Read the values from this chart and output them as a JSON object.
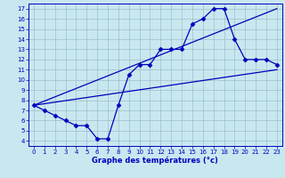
{
  "xlabel": "Graphe des températures (°c)",
  "xlim": [
    -0.5,
    23.5
  ],
  "ylim": [
    3.5,
    17.5
  ],
  "yticks": [
    4,
    5,
    6,
    7,
    8,
    9,
    10,
    11,
    12,
    13,
    14,
    15,
    16,
    17
  ],
  "xticks": [
    0,
    1,
    2,
    3,
    4,
    5,
    6,
    7,
    8,
    9,
    10,
    11,
    12,
    13,
    14,
    15,
    16,
    17,
    18,
    19,
    20,
    21,
    22,
    23
  ],
  "bg_color": "#c8e8f0",
  "line_color": "#0000bb",
  "grid_color": "#9bbfcc",
  "series1_x": [
    0,
    1,
    2,
    3,
    4,
    5,
    6,
    7,
    8,
    9,
    10,
    11,
    12,
    13,
    14,
    15,
    16,
    17,
    18,
    19,
    20,
    21,
    22,
    23
  ],
  "series1_y": [
    7.5,
    7.0,
    6.5,
    6.0,
    5.5,
    5.5,
    4.2,
    4.2,
    7.5,
    10.5,
    11.5,
    11.5,
    13.0,
    13.0,
    13.0,
    15.5,
    16.0,
    17.0,
    17.0,
    14.0,
    12.0,
    12.0,
    12.0,
    11.5
  ],
  "series2_x": [
    0,
    23
  ],
  "series2_y": [
    7.5,
    11.0
  ],
  "series3_x": [
    0,
    23
  ],
  "series3_y": [
    7.5,
    17.0
  ]
}
